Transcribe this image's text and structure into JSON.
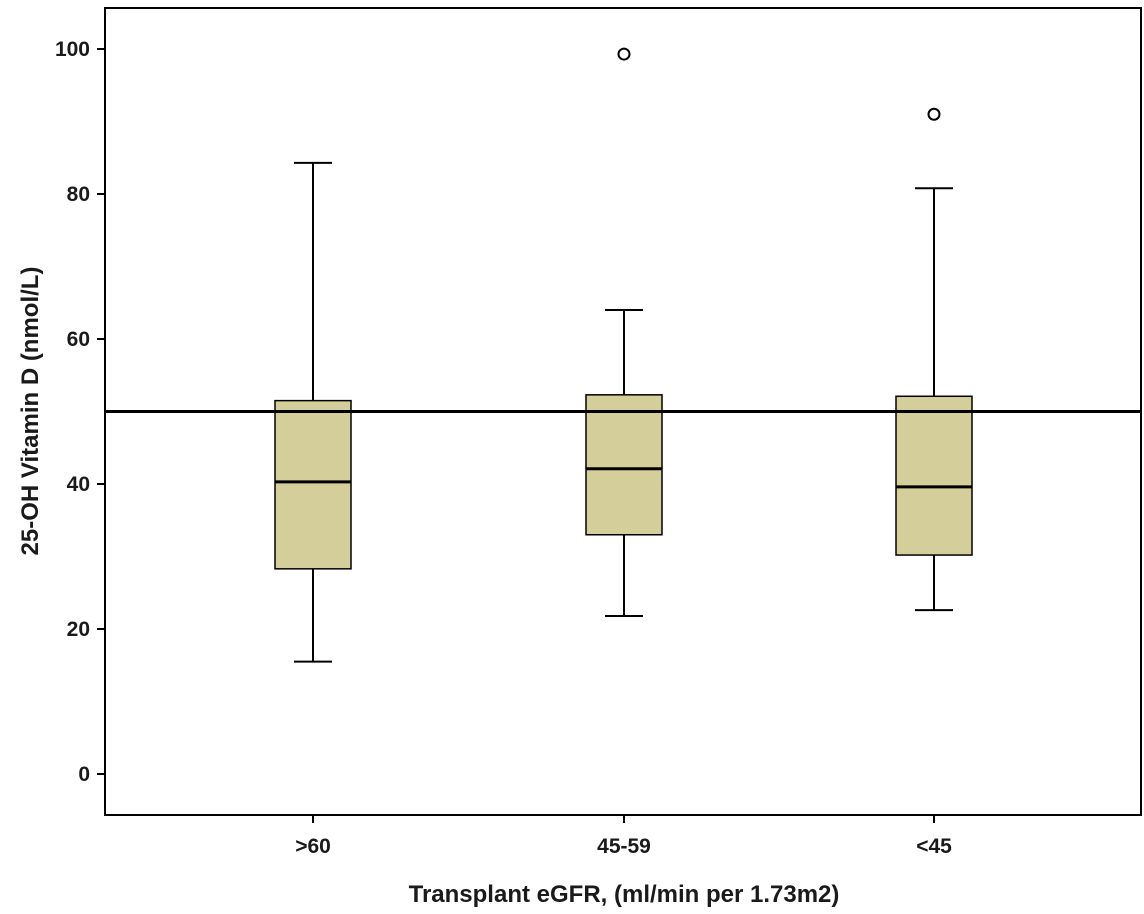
{
  "chart_data": {
    "type": "boxplot",
    "title": "",
    "xlabel": "Transplant eGFR, (ml/min per 1.73m2)",
    "ylabel": "25-OH Vitamin D (nmol/L)",
    "ylim": [
      -5,
      105
    ],
    "yticks": [
      0,
      20,
      40,
      60,
      80,
      100
    ],
    "grid": false,
    "reference_line": {
      "y": 50
    },
    "categories": [
      ">60",
      "45-59",
      "<45"
    ],
    "boxes": [
      {
        "category": ">60",
        "whisker_low": 15.5,
        "q1": 28.3,
        "median": 40.3,
        "q3": 51.5,
        "whisker_high": 84.3,
        "outliers": []
      },
      {
        "category": "45-59",
        "whisker_low": 21.8,
        "q1": 33.0,
        "median": 42.1,
        "q3": 52.3,
        "whisker_high": 64.0,
        "outliers": [
          99.3
        ]
      },
      {
        "category": "<45",
        "whisker_low": 22.6,
        "q1": 30.2,
        "median": 39.6,
        "q3": 52.1,
        "whisker_high": 80.8,
        "outliers": [
          91.0
        ]
      }
    ],
    "colors": {
      "box_fill": "#d4cf9a",
      "line": "#000000",
      "outlier_fill": "#ffffff"
    }
  }
}
